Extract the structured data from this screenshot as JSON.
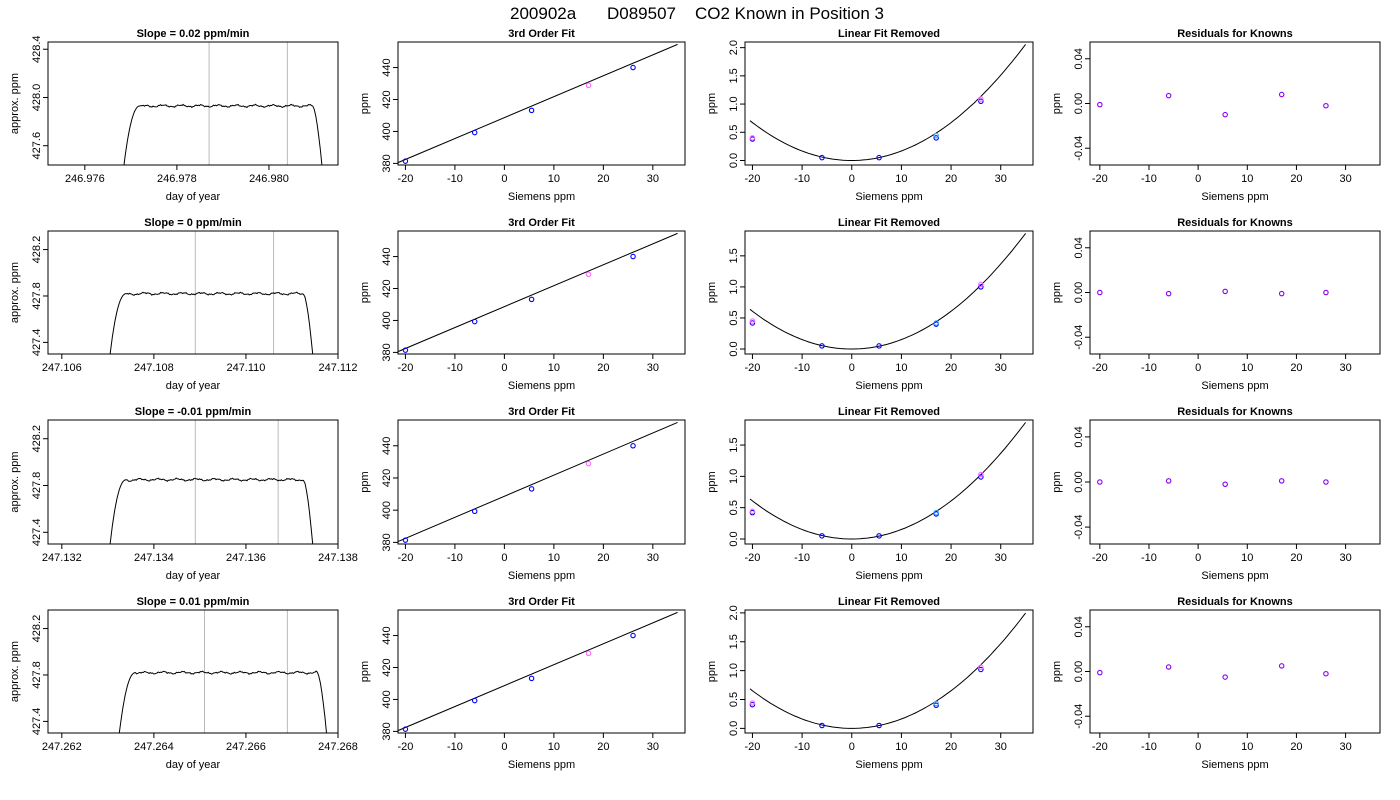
{
  "title": {
    "run": "200902a",
    "tank": "D089507",
    "desc": "CO2 Known in Position  3"
  },
  "chart_data": [
    {
      "row": 0,
      "col": 0,
      "type": "line",
      "title": "Slope =  0.02  ppm/min",
      "xlabel": "day of year",
      "ylabel": "approx. ppm",
      "xlim": [
        246.9752,
        246.9815
      ],
      "ylim": [
        427.44,
        428.46
      ],
      "xticks": [
        "246.976",
        "246.978",
        "246.980"
      ],
      "xtick_values": [
        246.976,
        246.978,
        246.98
      ],
      "yticks": [
        "427.6",
        "428.0",
        "428.4"
      ],
      "ytick_values": [
        427.6,
        428.0,
        428.4
      ],
      "vlines": [
        246.9787,
        246.9804
      ],
      "trace": {
        "x_start": 246.97685,
        "x_rise_end": 246.9772,
        "x_plateau_end": 246.98095,
        "x_end": 246.98115,
        "y_start": 427.44,
        "y_plateau": 427.93,
        "y_end": 427.44
      }
    },
    {
      "row": 1,
      "col": 0,
      "type": "line",
      "title": "Slope =  0  ppm/min",
      "xlabel": "day of year",
      "ylabel": "approx. ppm",
      "xlim": [
        247.1057,
        247.112
      ],
      "ylim": [
        427.3,
        428.36
      ],
      "xticks": [
        "247.106",
        "247.108",
        "247.110",
        "247.112"
      ],
      "xtick_values": [
        247.106,
        247.108,
        247.11,
        247.112
      ],
      "yticks": [
        "427.4",
        "427.8",
        "428.2"
      ],
      "ytick_values": [
        427.4,
        427.8,
        428.2
      ],
      "vlines": [
        247.1089,
        247.1106
      ],
      "trace": {
        "x_start": 247.10705,
        "x_rise_end": 247.1074,
        "x_plateau_end": 247.11125,
        "x_end": 247.11145,
        "y_start": 427.3,
        "y_plateau": 427.82,
        "y_end": 427.3
      }
    },
    {
      "row": 2,
      "col": 0,
      "type": "line",
      "title": "Slope =  -0.01  ppm/min",
      "xlabel": "day of year",
      "ylabel": "approx. ppm",
      "xlim": [
        247.1317,
        247.138
      ],
      "ylim": [
        427.3,
        428.36
      ],
      "xticks": [
        "247.132",
        "247.134",
        "247.136",
        "247.138"
      ],
      "xtick_values": [
        247.132,
        247.134,
        247.136,
        247.138
      ],
      "yticks": [
        "427.4",
        "427.8",
        "428.2"
      ],
      "ytick_values": [
        427.4,
        427.8,
        428.2
      ],
      "vlines": [
        247.1349,
        247.1367
      ],
      "trace": {
        "x_start": 247.13305,
        "x_rise_end": 247.1334,
        "x_plateau_end": 247.13725,
        "x_end": 247.13745,
        "y_start": 427.3,
        "y_plateau": 427.85,
        "y_end": 427.3
      }
    },
    {
      "row": 3,
      "col": 0,
      "type": "line",
      "title": "Slope =  0.01  ppm/min",
      "xlabel": "day of year",
      "ylabel": "approx. ppm",
      "xlim": [
        247.2617,
        247.268
      ],
      "ylim": [
        427.3,
        428.36
      ],
      "xticks": [
        "247.262",
        "247.264",
        "247.266",
        "247.268"
      ],
      "xtick_values": [
        247.262,
        247.264,
        247.266,
        247.268
      ],
      "yticks": [
        "427.4",
        "427.8",
        "428.2"
      ],
      "ytick_values": [
        427.4,
        427.8,
        428.2
      ],
      "vlines": [
        247.2651,
        247.2669
      ],
      "trace": {
        "x_start": 247.26325,
        "x_rise_end": 247.2636,
        "x_plateau_end": 247.26755,
        "x_end": 247.26775,
        "y_start": 427.3,
        "y_plateau": 427.82,
        "y_end": 427.3
      }
    },
    {
      "row": 0,
      "col": 1,
      "type": "scatter",
      "title": "3rd Order Fit",
      "xlabel": "Siemens ppm",
      "ylabel": "ppm",
      "xlim": [
        -21.5,
        36.5
      ],
      "ylim": [
        379.0,
        456.0
      ],
      "xticks": [
        "-20",
        "-10",
        "0",
        "10",
        "20",
        "30"
      ],
      "xtick_values": [
        -20,
        -10,
        0,
        10,
        20,
        30
      ],
      "yticks": [
        "380",
        "400",
        "420",
        "440"
      ],
      "ytick_values": [
        380,
        400,
        420,
        440
      ],
      "line": [
        [
          -21.5,
          380.5
        ],
        [
          35.0,
          454.5
        ]
      ],
      "points": [
        [
          -20.0,
          381.4,
          "blue"
        ],
        [
          -6.0,
          399.3,
          "blue"
        ],
        [
          5.5,
          413.2,
          "blue"
        ],
        [
          17.0,
          428.9,
          "pink"
        ],
        [
          26.0,
          440.0,
          "blue"
        ]
      ]
    },
    {
      "row": 1,
      "col": 1,
      "type": "scatter",
      "title": "3rd Order Fit",
      "xlabel": "Siemens ppm",
      "ylabel": "ppm",
      "xlim": [
        -21.5,
        36.5
      ],
      "ylim": [
        379.0,
        456.0
      ],
      "xticks": [
        "-20",
        "-10",
        "0",
        "10",
        "20",
        "30"
      ],
      "xtick_values": [
        -20,
        -10,
        0,
        10,
        20,
        30
      ],
      "yticks": [
        "380",
        "400",
        "420",
        "440"
      ],
      "ytick_values": [
        380,
        400,
        420,
        440
      ],
      "line": [
        [
          -21.5,
          380.5
        ],
        [
          35.0,
          454.5
        ]
      ],
      "points": [
        [
          -20.0,
          381.4,
          "blue"
        ],
        [
          -6.0,
          399.3,
          "blue"
        ],
        [
          5.5,
          413.2,
          "blue"
        ],
        [
          17.0,
          428.9,
          "pink"
        ],
        [
          26.0,
          440.0,
          "blue"
        ]
      ]
    },
    {
      "row": 2,
      "col": 1,
      "type": "scatter",
      "title": "3rd Order Fit",
      "xlabel": "Siemens ppm",
      "ylabel": "ppm",
      "xlim": [
        -21.5,
        36.5
      ],
      "ylim": [
        379.0,
        456.0
      ],
      "xticks": [
        "-20",
        "-10",
        "0",
        "10",
        "20",
        "30"
      ],
      "xtick_values": [
        -20,
        -10,
        0,
        10,
        20,
        30
      ],
      "yticks": [
        "380",
        "400",
        "420",
        "440"
      ],
      "ytick_values": [
        380,
        400,
        420,
        440
      ],
      "line": [
        [
          -21.5,
          380.5
        ],
        [
          35.0,
          454.5
        ]
      ],
      "points": [
        [
          -20.0,
          381.4,
          "blue"
        ],
        [
          -6.0,
          399.3,
          "blue"
        ],
        [
          5.5,
          413.2,
          "blue"
        ],
        [
          17.0,
          428.9,
          "pink"
        ],
        [
          26.0,
          440.0,
          "blue"
        ]
      ]
    },
    {
      "row": 3,
      "col": 1,
      "type": "scatter",
      "title": "3rd Order Fit",
      "xlabel": "Siemens ppm",
      "ylabel": "ppm",
      "xlim": [
        -21.5,
        36.5
      ],
      "ylim": [
        379.0,
        456.0
      ],
      "xticks": [
        "-20",
        "-10",
        "0",
        "10",
        "20",
        "30"
      ],
      "xtick_values": [
        -20,
        -10,
        0,
        10,
        20,
        30
      ],
      "yticks": [
        "380",
        "400",
        "420",
        "440"
      ],
      "ytick_values": [
        380,
        400,
        420,
        440
      ],
      "line": [
        [
          -21.5,
          380.5
        ],
        [
          35.0,
          454.5
        ]
      ],
      "points": [
        [
          -20.0,
          381.4,
          "blue"
        ],
        [
          -6.0,
          399.3,
          "blue"
        ],
        [
          5.5,
          413.2,
          "blue"
        ],
        [
          17.0,
          428.9,
          "pink"
        ],
        [
          26.0,
          440.0,
          "blue"
        ]
      ]
    },
    {
      "row": 0,
      "col": 2,
      "type": "scatter",
      "title": "Linear Fit Removed",
      "xlabel": "Siemens ppm",
      "ylabel": "ppm",
      "xlim": [
        -21.5,
        36.5
      ],
      "ylim": [
        -0.08,
        2.1
      ],
      "xticks": [
        "-20",
        "-10",
        "0",
        "10",
        "20",
        "30"
      ],
      "xtick_values": [
        -20,
        -10,
        0,
        10,
        20,
        30
      ],
      "yticks": [
        "0.0",
        "0.5",
        "1.0",
        "1.5",
        "2.0"
      ],
      "ytick_values": [
        0.0,
        0.5,
        1.0,
        1.5,
        2.0
      ],
      "curve_coef": 0.00168,
      "curve_xrange": [
        -20.5,
        35.0
      ],
      "points": [
        [
          -20.0,
          0.38,
          "blue"
        ],
        [
          -20.0,
          0.4,
          "pink"
        ],
        [
          -6.0,
          0.05,
          "blue"
        ],
        [
          5.5,
          0.05,
          "blue"
        ],
        [
          17.0,
          0.4,
          "blue"
        ],
        [
          17.0,
          0.44,
          "cyan"
        ],
        [
          26.0,
          1.05,
          "blue"
        ],
        [
          26.0,
          1.09,
          "pink"
        ]
      ]
    },
    {
      "row": 1,
      "col": 2,
      "type": "scatter",
      "title": "Linear Fit Removed",
      "xlabel": "Siemens ppm",
      "ylabel": "ppm",
      "xlim": [
        -21.5,
        36.5
      ],
      "ylim": [
        -0.08,
        1.9
      ],
      "xticks": [
        "-20",
        "-10",
        "0",
        "10",
        "20",
        "30"
      ],
      "xtick_values": [
        -20,
        -10,
        0,
        10,
        20,
        30
      ],
      "yticks": [
        "0.0",
        "0.5",
        "1.0",
        "1.5"
      ],
      "ytick_values": [
        0.0,
        0.5,
        1.0,
        1.5
      ],
      "curve_coef": 0.00152,
      "curve_xrange": [
        -20.5,
        35.0
      ],
      "points": [
        [
          -20.0,
          0.42,
          "blue"
        ],
        [
          -20.0,
          0.45,
          "pink"
        ],
        [
          -6.0,
          0.05,
          "blue"
        ],
        [
          5.5,
          0.05,
          "blue"
        ],
        [
          17.0,
          0.4,
          "blue"
        ],
        [
          17.0,
          0.42,
          "cyan"
        ],
        [
          26.0,
          1.0,
          "blue"
        ],
        [
          26.0,
          1.04,
          "pink"
        ]
      ]
    },
    {
      "row": 2,
      "col": 2,
      "type": "scatter",
      "title": "Linear Fit Removed",
      "xlabel": "Siemens ppm",
      "ylabel": "ppm",
      "xlim": [
        -21.5,
        36.5
      ],
      "ylim": [
        -0.08,
        1.9
      ],
      "xticks": [
        "-20",
        "-10",
        "0",
        "10",
        "20",
        "30"
      ],
      "xtick_values": [
        -20,
        -10,
        0,
        10,
        20,
        30
      ],
      "yticks": [
        "0.0",
        "0.5",
        "1.0",
        "1.5"
      ],
      "ytick_values": [
        0.0,
        0.5,
        1.0,
        1.5
      ],
      "curve_coef": 0.00152,
      "curve_xrange": [
        -20.5,
        35.0
      ],
      "points": [
        [
          -20.0,
          0.42,
          "blue"
        ],
        [
          -20.0,
          0.44,
          "pink"
        ],
        [
          -6.0,
          0.05,
          "blue"
        ],
        [
          5.5,
          0.05,
          "blue"
        ],
        [
          17.0,
          0.4,
          "blue"
        ],
        [
          17.0,
          0.42,
          "cyan"
        ],
        [
          26.0,
          0.99,
          "blue"
        ],
        [
          26.0,
          1.03,
          "pink"
        ]
      ]
    },
    {
      "row": 3,
      "col": 2,
      "type": "scatter",
      "title": "Linear Fit Removed",
      "xlabel": "Siemens ppm",
      "ylabel": "ppm",
      "xlim": [
        -21.5,
        36.5
      ],
      "ylim": [
        -0.08,
        2.05
      ],
      "xticks": [
        "-20",
        "-10",
        "0",
        "10",
        "20",
        "30"
      ],
      "xtick_values": [
        -20,
        -10,
        0,
        10,
        20,
        30
      ],
      "yticks": [
        "0.0",
        "0.5",
        "1.0",
        "1.5",
        "2.0"
      ],
      "ytick_values": [
        0.0,
        0.5,
        1.0,
        1.5,
        2.0
      ],
      "curve_coef": 0.00163,
      "curve_xrange": [
        -20.5,
        35.0
      ],
      "points": [
        [
          -20.0,
          0.41,
          "blue"
        ],
        [
          -20.0,
          0.44,
          "pink"
        ],
        [
          -6.0,
          0.05,
          "blue"
        ],
        [
          5.5,
          0.05,
          "blue"
        ],
        [
          17.0,
          0.4,
          "blue"
        ],
        [
          17.0,
          0.43,
          "cyan"
        ],
        [
          26.0,
          1.02,
          "blue"
        ],
        [
          26.0,
          1.06,
          "pink"
        ]
      ]
    },
    {
      "row": 0,
      "col": 3,
      "type": "scatter",
      "title": "Residuals for Knowns",
      "xlabel": "Siemens ppm",
      "ylabel": "ppm",
      "xlim": [
        -22.0,
        37.0
      ],
      "ylim": [
        -0.055,
        0.055
      ],
      "xticks": [
        "-20",
        "-10",
        "0",
        "10",
        "20",
        "30"
      ],
      "xtick_values": [
        -20,
        -10,
        0,
        10,
        20,
        30
      ],
      "yticks": [
        "-0.04",
        "0.00",
        "0.04"
      ],
      "ytick_values": [
        -0.04,
        0.0,
        0.04
      ],
      "points": [
        [
          -20.0,
          -0.001,
          "purple"
        ],
        [
          -6.0,
          0.007,
          "purple"
        ],
        [
          5.5,
          -0.01,
          "purple"
        ],
        [
          17.0,
          0.008,
          "purple"
        ],
        [
          26.0,
          -0.002,
          "purple"
        ]
      ]
    },
    {
      "row": 1,
      "col": 3,
      "type": "scatter",
      "title": "Residuals for Knowns",
      "xlabel": "Siemens ppm",
      "ylabel": "ppm",
      "xlim": [
        -22.0,
        37.0
      ],
      "ylim": [
        -0.055,
        0.055
      ],
      "xticks": [
        "-20",
        "-10",
        "0",
        "10",
        "20",
        "30"
      ],
      "xtick_values": [
        -20,
        -10,
        0,
        10,
        20,
        30
      ],
      "yticks": [
        "-0.04",
        "0.00",
        "0.04"
      ],
      "ytick_values": [
        -0.04,
        0.0,
        0.04
      ],
      "points": [
        [
          -20.0,
          0.0,
          "purple"
        ],
        [
          -6.0,
          -0.001,
          "purple"
        ],
        [
          5.5,
          0.001,
          "purple"
        ],
        [
          17.0,
          -0.001,
          "purple"
        ],
        [
          26.0,
          0.0,
          "purple"
        ]
      ]
    },
    {
      "row": 2,
      "col": 3,
      "type": "scatter",
      "title": "Residuals for Knowns",
      "xlabel": "Siemens ppm",
      "ylabel": "ppm",
      "xlim": [
        -22.0,
        37.0
      ],
      "ylim": [
        -0.055,
        0.055
      ],
      "xticks": [
        "-20",
        "-10",
        "0",
        "10",
        "20",
        "30"
      ],
      "xtick_values": [
        -20,
        -10,
        0,
        10,
        20,
        30
      ],
      "yticks": [
        "-0.04",
        "0.00",
        "0.04"
      ],
      "ytick_values": [
        -0.04,
        0.0,
        0.04
      ],
      "points": [
        [
          -20.0,
          0.0,
          "purple"
        ],
        [
          -6.0,
          0.001,
          "purple"
        ],
        [
          5.5,
          -0.002,
          "purple"
        ],
        [
          17.0,
          0.001,
          "purple"
        ],
        [
          26.0,
          0.0,
          "purple"
        ]
      ]
    },
    {
      "row": 3,
      "col": 3,
      "type": "scatter",
      "title": "Residuals for Knowns",
      "xlabel": "Siemens ppm",
      "ylabel": "ppm",
      "xlim": [
        -22.0,
        37.0
      ],
      "ylim": [
        -0.055,
        0.055
      ],
      "xticks": [
        "-20",
        "-10",
        "0",
        "10",
        "20",
        "30"
      ],
      "xtick_values": [
        -20,
        -10,
        0,
        10,
        20,
        30
      ],
      "yticks": [
        "-0.04",
        "0.00",
        "0.04"
      ],
      "ytick_values": [
        -0.04,
        0.0,
        0.04
      ],
      "points": [
        [
          -20.0,
          -0.001,
          "purple"
        ],
        [
          -6.0,
          0.004,
          "purple"
        ],
        [
          5.5,
          -0.005,
          "purple"
        ],
        [
          17.0,
          0.005,
          "purple"
        ],
        [
          26.0,
          -0.002,
          "purple"
        ]
      ]
    }
  ],
  "colors": {
    "blue": "#0000ff",
    "pink": "#ff66ff",
    "cyan": "#33aaff",
    "purple": "#8800ee",
    "vline": "#bbbbbb",
    "axis": "#000000"
  }
}
